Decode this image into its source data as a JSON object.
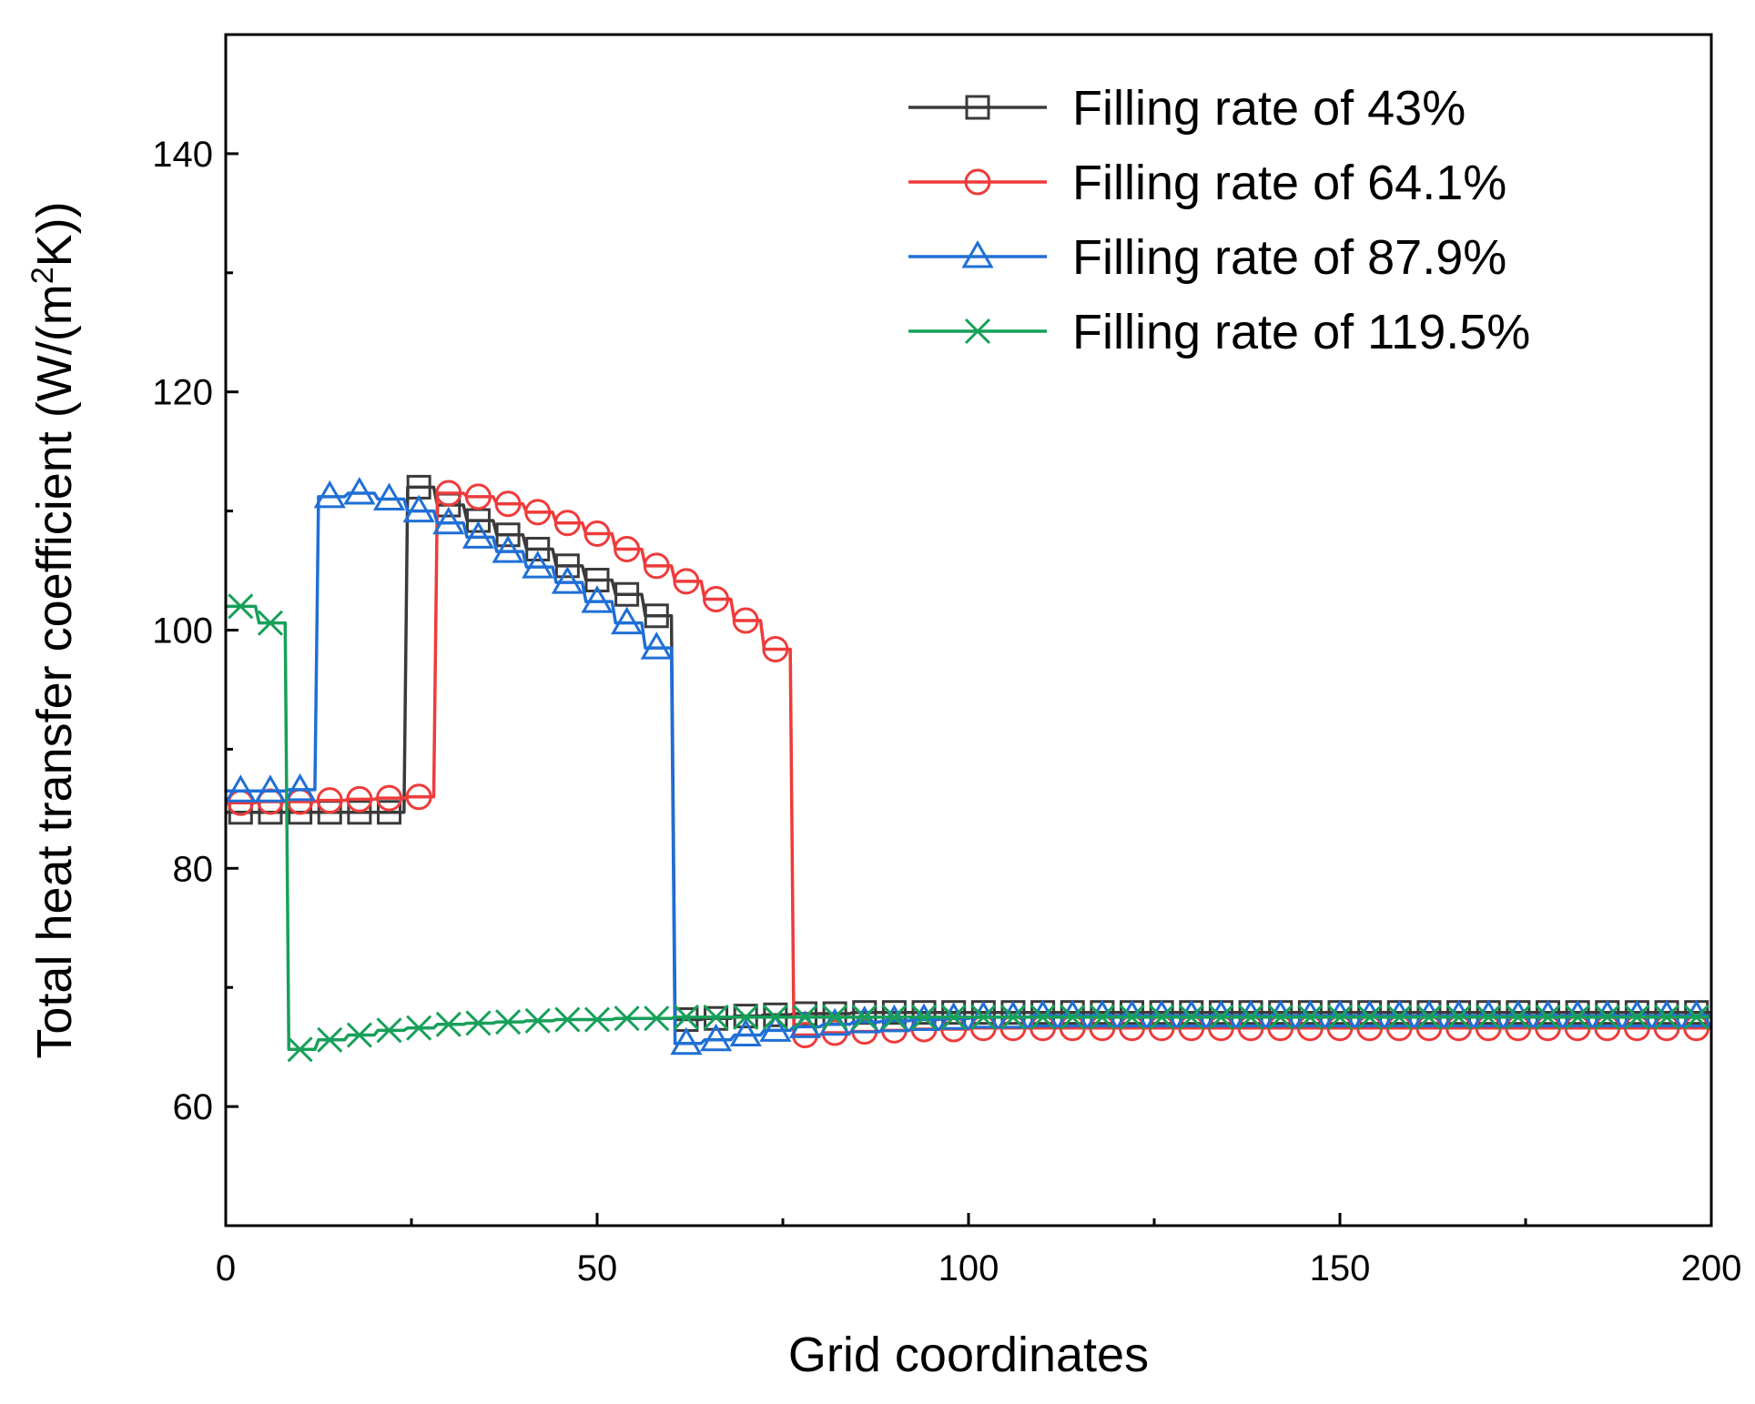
{
  "chart_data": {
    "type": "line",
    "title": "",
    "xlabel": "Grid coordinates",
    "ylabel": "Total heat transfer coefficient (W/(m",
    "ylabel_sup": "2",
    "ylabel_end": "K))",
    "xlim": [
      0,
      200
    ],
    "ylim": [
      50,
      150
    ],
    "xticks": [
      0,
      50,
      100,
      150,
      200
    ],
    "xticks_minor": [
      25,
      75,
      125,
      175
    ],
    "yticks": [
      60,
      80,
      100,
      120,
      140
    ],
    "yticks_minor": [
      70,
      90,
      110,
      130
    ],
    "grid": false,
    "legend_position": "top-right",
    "series": [
      {
        "name": "Filling rate of 43%",
        "color": "#3a3a3a",
        "marker": "square",
        "x": [
          2,
          6,
          10,
          14,
          18,
          22,
          26,
          30,
          34,
          38,
          42,
          46,
          50,
          54,
          58,
          62,
          66,
          70,
          74,
          78,
          82,
          86,
          90,
          94,
          98,
          102,
          106,
          110,
          114,
          118,
          122,
          126,
          130,
          134,
          138,
          142,
          146,
          150,
          154,
          158,
          162,
          166,
          170,
          174,
          178,
          182,
          186,
          190,
          194,
          198
        ],
        "y": [
          84.7,
          84.7,
          84.7,
          84.7,
          84.7,
          84.7,
          112.0,
          110.5,
          109.2,
          108.0,
          106.8,
          105.4,
          104.2,
          103.0,
          101.2,
          67.3,
          67.4,
          67.6,
          67.7,
          67.8,
          67.8,
          67.9,
          67.9,
          67.9,
          67.9,
          67.9,
          67.9,
          67.9,
          67.9,
          67.9,
          67.9,
          67.9,
          67.9,
          67.9,
          67.9,
          67.9,
          67.9,
          67.9,
          67.9,
          67.9,
          67.9,
          67.9,
          67.9,
          67.9,
          67.9,
          67.9,
          67.9,
          67.9,
          67.9,
          67.9
        ]
      },
      {
        "name": "Filling rate of 64.1%",
        "color": "#ef3b3b",
        "marker": "circle",
        "x": [
          2,
          6,
          10,
          14,
          18,
          22,
          26,
          30,
          34,
          38,
          42,
          46,
          50,
          54,
          58,
          62,
          66,
          70,
          74,
          78,
          82,
          86,
          90,
          94,
          98,
          102,
          106,
          110,
          114,
          118,
          122,
          126,
          130,
          134,
          138,
          142,
          146,
          150,
          154,
          158,
          162,
          166,
          170,
          174,
          178,
          182,
          186,
          190,
          194,
          198
        ],
        "y": [
          85.5,
          85.6,
          85.6,
          85.7,
          85.8,
          85.9,
          86.0,
          111.5,
          111.2,
          110.6,
          109.9,
          109.0,
          108.1,
          106.8,
          105.4,
          104.1,
          102.6,
          100.8,
          98.4,
          66.0,
          66.2,
          66.3,
          66.4,
          66.5,
          66.5,
          66.6,
          66.6,
          66.6,
          66.6,
          66.6,
          66.6,
          66.6,
          66.6,
          66.6,
          66.6,
          66.6,
          66.6,
          66.6,
          66.6,
          66.6,
          66.6,
          66.6,
          66.6,
          66.6,
          66.6,
          66.6,
          66.6,
          66.6,
          66.6,
          66.6
        ]
      },
      {
        "name": "Filling rate of 87.9%",
        "color": "#1f6fd6",
        "marker": "triangle",
        "x": [
          2,
          6,
          10,
          14,
          18,
          22,
          26,
          30,
          34,
          38,
          42,
          46,
          50,
          54,
          58,
          62,
          66,
          70,
          74,
          78,
          82,
          86,
          90,
          94,
          98,
          102,
          106,
          110,
          114,
          118,
          122,
          126,
          130,
          134,
          138,
          142,
          146,
          150,
          154,
          158,
          162,
          166,
          170,
          174,
          178,
          182,
          186,
          190,
          194,
          198
        ],
        "y": [
          86.5,
          86.5,
          86.6,
          111.2,
          111.5,
          111.0,
          110.0,
          109.0,
          107.8,
          106.6,
          105.3,
          104.0,
          102.4,
          100.6,
          98.5,
          65.3,
          65.6,
          66.0,
          66.4,
          66.7,
          66.9,
          67.1,
          67.2,
          67.3,
          67.4,
          67.5,
          67.5,
          67.6,
          67.6,
          67.6,
          67.6,
          67.6,
          67.6,
          67.6,
          67.6,
          67.6,
          67.6,
          67.6,
          67.6,
          67.6,
          67.6,
          67.6,
          67.6,
          67.6,
          67.6,
          67.6,
          67.6,
          67.6,
          67.6,
          67.6
        ]
      },
      {
        "name": "Filling rate of 119.5%",
        "color": "#17a05a",
        "marker": "x",
        "x": [
          2,
          6,
          10,
          14,
          18,
          22,
          26,
          30,
          34,
          38,
          42,
          46,
          50,
          54,
          58,
          62,
          66,
          70,
          74,
          78,
          82,
          86,
          90,
          94,
          98,
          102,
          106,
          110,
          114,
          118,
          122,
          126,
          130,
          134,
          138,
          142,
          146,
          150,
          154,
          158,
          162,
          166,
          170,
          174,
          178,
          182,
          186,
          190,
          194,
          198
        ],
        "y": [
          102.0,
          100.6,
          64.8,
          65.6,
          66.0,
          66.4,
          66.6,
          66.9,
          67.0,
          67.1,
          67.2,
          67.3,
          67.3,
          67.4,
          67.4,
          67.5,
          67.5,
          67.5,
          67.5,
          67.5,
          67.5,
          67.5,
          67.5,
          67.5,
          67.5,
          67.5,
          67.5,
          67.5,
          67.5,
          67.5,
          67.5,
          67.5,
          67.5,
          67.5,
          67.5,
          67.5,
          67.5,
          67.5,
          67.5,
          67.5,
          67.5,
          67.5,
          67.5,
          67.5,
          67.5,
          67.5,
          67.5,
          67.5,
          67.5,
          67.5
        ]
      }
    ]
  }
}
